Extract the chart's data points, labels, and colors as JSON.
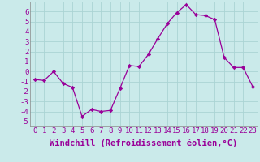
{
  "x": [
    0,
    1,
    2,
    3,
    4,
    5,
    6,
    7,
    8,
    9,
    10,
    11,
    12,
    13,
    14,
    15,
    16,
    17,
    18,
    19,
    20,
    21,
    22,
    23
  ],
  "y": [
    -0.8,
    -0.9,
    0.0,
    -1.2,
    -1.6,
    -4.5,
    -3.8,
    -4.0,
    -3.9,
    -1.7,
    0.6,
    0.5,
    1.7,
    3.3,
    4.8,
    5.9,
    6.7,
    5.7,
    5.6,
    5.2,
    1.4,
    0.4,
    0.4,
    -1.5
  ],
  "xlim": [
    -0.5,
    23.5
  ],
  "ylim": [
    -5.5,
    7.0
  ],
  "xticks": [
    0,
    1,
    2,
    3,
    4,
    5,
    6,
    7,
    8,
    9,
    10,
    11,
    12,
    13,
    14,
    15,
    16,
    17,
    18,
    19,
    20,
    21,
    22,
    23
  ],
  "yticks": [
    -5,
    -4,
    -3,
    -2,
    -1,
    0,
    1,
    2,
    3,
    4,
    5,
    6
  ],
  "xlabel": "Windchill (Refroidissement éolien,°C)",
  "line_color": "#990099",
  "marker_color": "#990099",
  "bg_color": "#caeaea",
  "grid_color": "#aad4d4",
  "tick_color": "#990099",
  "tick_fontsize": 6.5,
  "xlabel_fontsize": 7.5
}
